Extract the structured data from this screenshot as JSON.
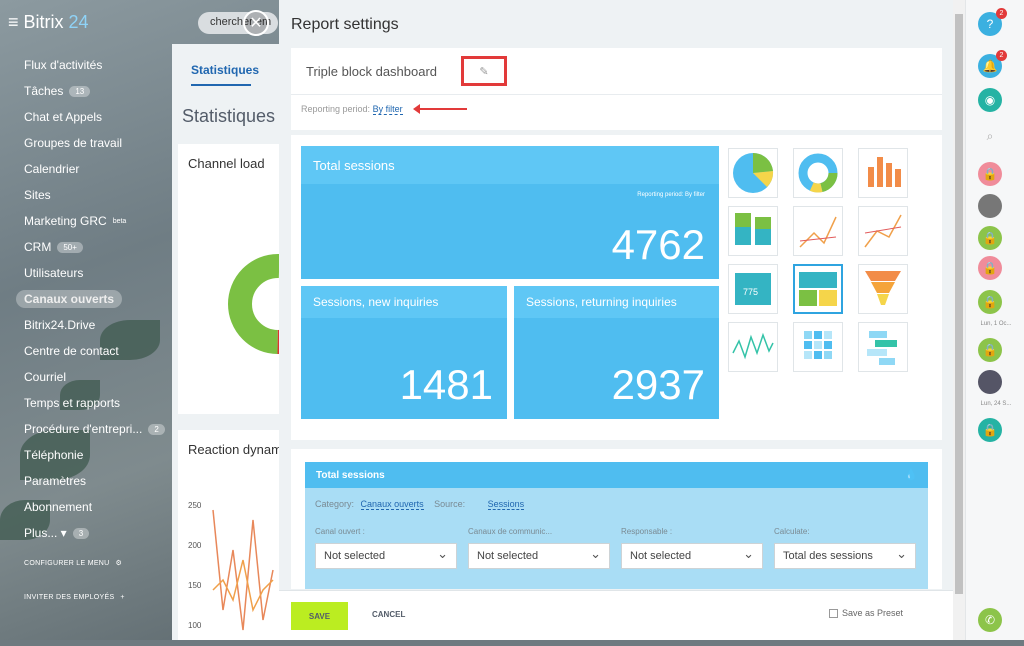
{
  "background": {
    "logo": "Bitrix",
    "logo_num": "24",
    "search_placeholder": "chercher em",
    "menu": [
      {
        "label": "Flux d'activités"
      },
      {
        "label": "Tâches",
        "count": "13"
      },
      {
        "label": "Chat et Appels"
      },
      {
        "label": "Groupes de travail"
      },
      {
        "label": "Calendrier"
      },
      {
        "label": "Sites"
      },
      {
        "label": "Marketing GRC",
        "sup": "beta"
      },
      {
        "label": "CRM",
        "count": "50+"
      },
      {
        "label": "Utilisateurs"
      },
      {
        "label": "Canaux ouverts",
        "active": true
      },
      {
        "label": "Bitrix24.Drive"
      },
      {
        "label": "Centre de contact"
      },
      {
        "label": "Courriel"
      },
      {
        "label": "Temps et rapports"
      },
      {
        "label": "Procédure d'entrepri...",
        "count": "2"
      },
      {
        "label": "Téléphonie"
      },
      {
        "label": "Paramètres"
      },
      {
        "label": "Abonnement"
      },
      {
        "label": "Plus... ▾",
        "count": "3"
      }
    ],
    "configure_menu": "CONFIGURER LE MENU",
    "invite": "INVITER DES EMPLOYÉS",
    "tab": "Statistiques",
    "heading": "Statistiques",
    "card1_title": "Channel load",
    "card2_title": "Reaction dynam",
    "axis_ticks": [
      "250",
      "200",
      "150",
      "100"
    ]
  },
  "panel": {
    "title": "Report settings",
    "report_name": "Triple block dashboard",
    "reporting_period_label": "Reporting period:",
    "reporting_period_value": "By filter",
    "tiles": {
      "total_title": "Total sessions",
      "total_sub": "Reporting period: By filter",
      "total_value": "4762",
      "new_title": "Sessions, new inquiries",
      "new_value": "1481",
      "ret_title": "Sessions, returning inquiries",
      "ret_value": "2937"
    },
    "widget": {
      "title": "Total sessions",
      "category_label": "Category:",
      "category_value": "Canaux ouverts",
      "source_label": "Source:",
      "source_value": "Sessions",
      "filters": [
        {
          "label": "Canal ouvert :",
          "value": "Not selected"
        },
        {
          "label": "Canaux de communic...",
          "value": "Not selected"
        },
        {
          "label": "Responsable :",
          "value": "Not selected"
        },
        {
          "label": "Calculate:",
          "value": "Total des sessions"
        }
      ]
    },
    "save": "SAVE",
    "cancel": "CANCEL",
    "preset": "Save as Preset"
  },
  "rightbar": {
    "help_badge": "2",
    "notif_badge": "2",
    "date1": "Lun, 1 Oc...",
    "date2": "Lun, 24 S..."
  },
  "colors": {
    "accent": "#4fbdf0",
    "save": "#bbed21",
    "highlight": "#e23a3a",
    "link": "#2067b0"
  }
}
